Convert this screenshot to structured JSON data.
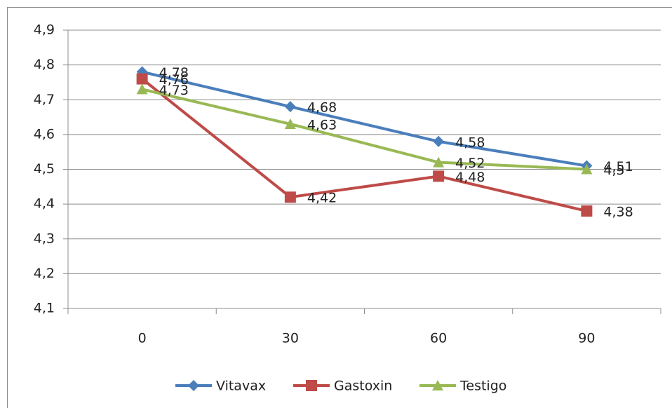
{
  "chart_data": {
    "type": "line",
    "categories": [
      "0",
      "30",
      "60",
      "90"
    ],
    "series": [
      {
        "name": "Vitavax",
        "color": "#4a7ebb",
        "marker": "diamond",
        "values": [
          4.78,
          4.68,
          4.58,
          4.51
        ],
        "value_labels": [
          "4,78",
          "4,68",
          "4,58",
          "4,51"
        ]
      },
      {
        "name": "Gastoxin",
        "color": "#be4b48",
        "marker": "square",
        "values": [
          4.76,
          4.42,
          4.48,
          4.38
        ],
        "value_labels": [
          "4,76",
          "4,42",
          "4,48",
          "4,38"
        ]
      },
      {
        "name": "Testigo",
        "color": "#98b954",
        "marker": "triangle",
        "values": [
          4.73,
          4.63,
          4.52,
          4.5
        ],
        "value_labels": [
          "4,73",
          "4,63",
          "4,52",
          "4,5"
        ]
      }
    ],
    "ylim": [
      4.1,
      4.9
    ],
    "yticks": [
      {
        "value": 4.1,
        "label": "4,1"
      },
      {
        "value": 4.2,
        "label": "4,2"
      },
      {
        "value": 4.3,
        "label": "4,3"
      },
      {
        "value": 4.4,
        "label": "4,4"
      },
      {
        "value": 4.5,
        "label": "4,5"
      },
      {
        "value": 4.6,
        "label": "4,6"
      },
      {
        "value": 4.7,
        "label": "4,7"
      },
      {
        "value": 4.8,
        "label": "4,8"
      },
      {
        "value": 4.9,
        "label": "4,9"
      }
    ],
    "grid": true,
    "legend": "bottom"
  }
}
